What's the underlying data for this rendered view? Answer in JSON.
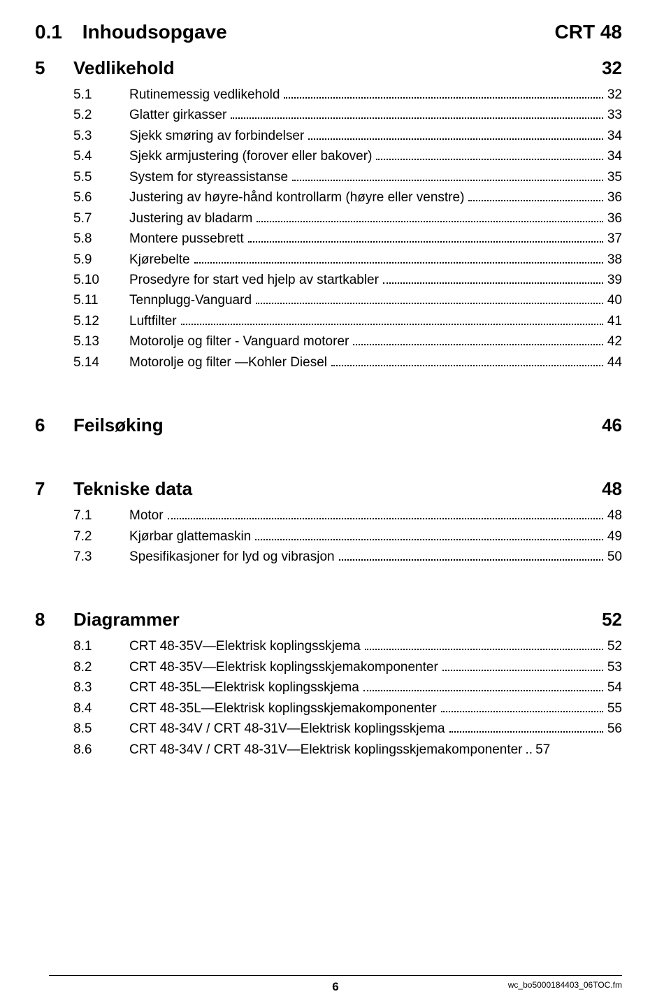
{
  "header": {
    "number": "0.1",
    "title": "Inhoudsopgave",
    "right": "CRT 48"
  },
  "sections": [
    {
      "num": "5",
      "title": "Vedlikehold",
      "page": "32",
      "first": true,
      "entries": [
        {
          "num": "5.1",
          "title": "Rutinemessig vedlikehold",
          "page": "32"
        },
        {
          "num": "5.2",
          "title": "Glatter girkasser",
          "page": "33"
        },
        {
          "num": "5.3",
          "title": "Sjekk smøring av forbindelser",
          "page": "34"
        },
        {
          "num": "5.4",
          "title": "Sjekk armjustering (forover eller bakover)",
          "page": "34"
        },
        {
          "num": "5.5",
          "title": "System for styreassistanse",
          "page": "35"
        },
        {
          "num": "5.6",
          "title": "Justering av høyre-hånd kontrollarm (høyre eller venstre)",
          "page": "36"
        },
        {
          "num": "5.7",
          "title": "Justering av bladarm",
          "page": "36"
        },
        {
          "num": "5.8",
          "title": "Montere pussebrett",
          "page": "37"
        },
        {
          "num": "5.9",
          "title": "Kjørebelte",
          "page": "38"
        },
        {
          "num": "5.10",
          "title": "Prosedyre for start ved hjelp av startkabler",
          "page": "39"
        },
        {
          "num": "5.11",
          "title": "Tennplugg-Vanguard",
          "page": "40"
        },
        {
          "num": "5.12",
          "title": "Luftfilter",
          "page": "41"
        },
        {
          "num": "5.13",
          "title": "Motorolje og filter - Vanguard motorer",
          "page": "42"
        },
        {
          "num": "5.14",
          "title": "Motorolje og filter —Kohler Diesel",
          "page": "44"
        }
      ]
    },
    {
      "num": "6",
      "title": "Feilsøking",
      "page": "46",
      "entries": []
    },
    {
      "num": "7",
      "title": "Tekniske data",
      "page": "48",
      "entries": [
        {
          "num": "7.1",
          "title": "Motor",
          "page": "48"
        },
        {
          "num": "7.2",
          "title": "Kjørbar glattemaskin",
          "page": "49"
        },
        {
          "num": "7.3",
          "title": "Spesifikasjoner for lyd og vibrasjon",
          "page": "50"
        }
      ]
    },
    {
      "num": "8",
      "title": "Diagrammer",
      "page": "52",
      "entries": [
        {
          "num": "8.1",
          "title": "CRT 48-35V—Elektrisk koplingsskjema",
          "page": "52"
        },
        {
          "num": "8.2",
          "title": "CRT 48-35V—Elektrisk koplingsskjemakomponenter",
          "page": "53"
        },
        {
          "num": "8.3",
          "title": "CRT 48-35L—Elektrisk koplingsskjema",
          "page": "54"
        },
        {
          "num": "8.4",
          "title": "CRT 48-35L—Elektrisk koplingsskjemakomponenter",
          "page": "55"
        },
        {
          "num": "8.5",
          "title": "CRT 48-34V / CRT 48-31V—Elektrisk koplingsskjema",
          "page": "56"
        },
        {
          "num": "8.6",
          "title": "CRT 48-34V / CRT 48-31V—Elektrisk koplingsskjemakomponenter",
          "page": "57",
          "nodots": true
        }
      ]
    }
  ],
  "footer": {
    "pagenum": "6",
    "file": "wc_bo5000184403_06TOC.fm"
  }
}
